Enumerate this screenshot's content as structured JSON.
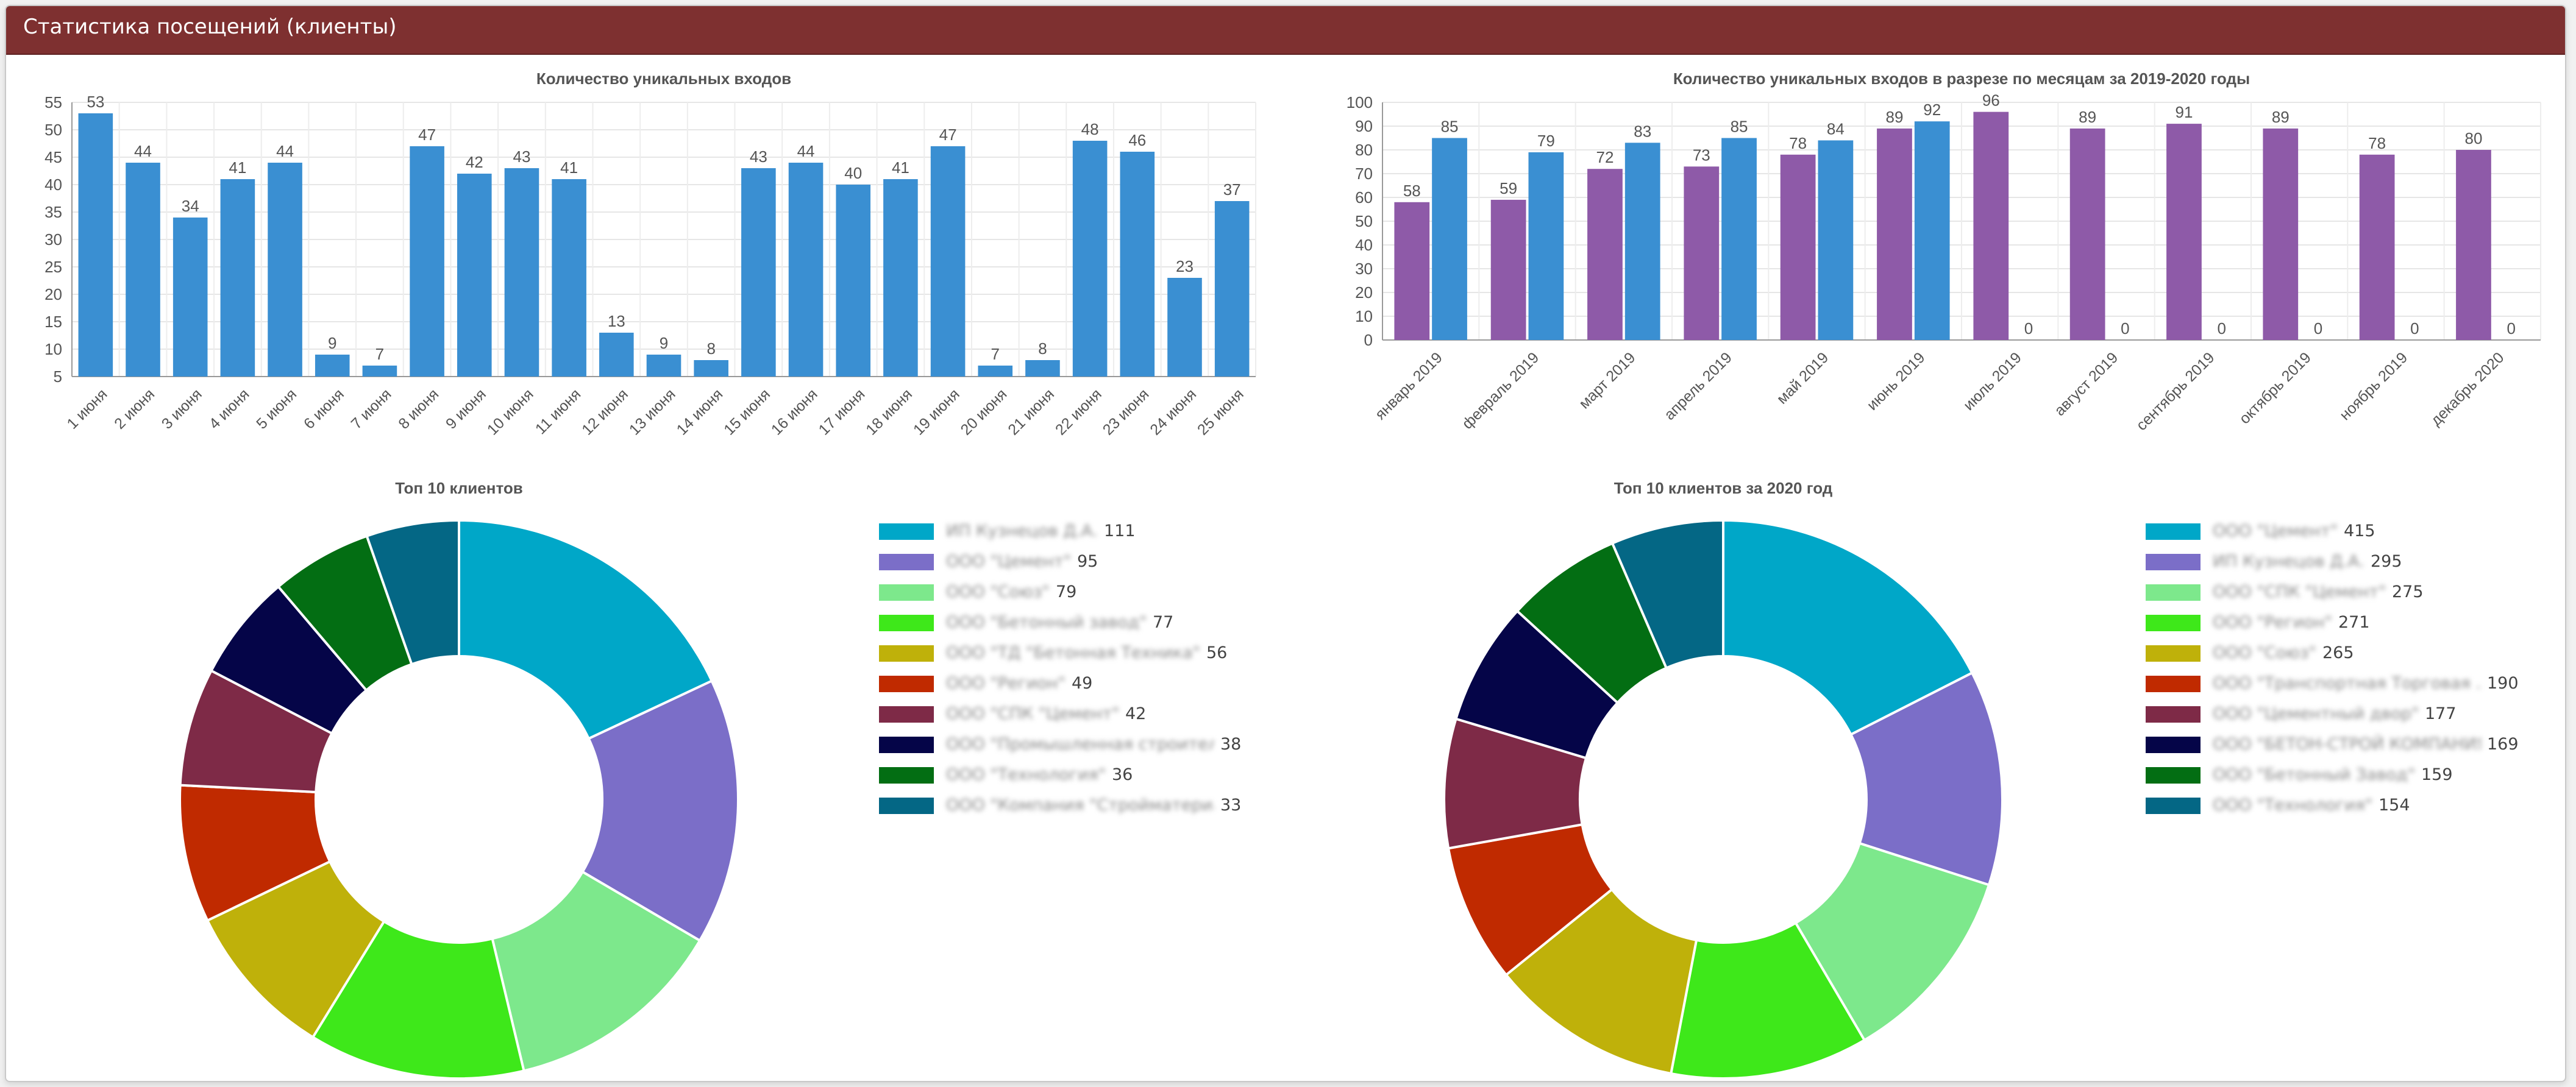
{
  "header": {
    "title": "Статистика посещений (клиенты)"
  },
  "colors": {
    "header_bg": "#7e3030",
    "bar_blue": "#3a8fd2",
    "bar_purple": "#8e5aa8",
    "pie": [
      "#00a7c8",
      "#7b6ec8",
      "#7de88c",
      "#3ee81a",
      "#bfb10a",
      "#c02a00",
      "#7e2a47",
      "#050548",
      "#036e13",
      "#046785"
    ]
  },
  "chart_data": [
    {
      "type": "bar",
      "title": "Количество уникальных входов",
      "categories": [
        "1 июня",
        "2 июня",
        "3 июня",
        "4 июня",
        "5 июня",
        "6 июня",
        "7 июня",
        "8 июня",
        "9 июня",
        "10 июня",
        "11 июня",
        "12 июня",
        "13 июня",
        "14 июня",
        "15 июня",
        "16 июня",
        "17 июня",
        "18 июня",
        "19 июня",
        "20 июня",
        "21 июня",
        "22 июня",
        "23 июня",
        "24 июня",
        "25 июня"
      ],
      "values": [
        53,
        44,
        34,
        41,
        44,
        9,
        7,
        47,
        42,
        43,
        41,
        13,
        9,
        8,
        43,
        44,
        40,
        41,
        47,
        7,
        8,
        48,
        46,
        23,
        37
      ],
      "ylim": [
        5,
        55
      ],
      "yticks": [
        5,
        10,
        15,
        20,
        25,
        30,
        35,
        40,
        45,
        50,
        55
      ],
      "grid": true,
      "data_labels": true
    },
    {
      "type": "bar",
      "title": "Количество уникальных входов в разрезе по месяцам за 2019-2020 годы",
      "categories": [
        "январь 2019",
        "февраль 2019",
        "март 2019",
        "апрель 2019",
        "май 2019",
        "июнь 2019",
        "июль 2019",
        "август 2019",
        "сентябрь 2019",
        "октябрь 2019",
        "ноябрь 2019",
        "декабрь 2020"
      ],
      "series": [
        {
          "values": [
            58,
            59,
            72,
            73,
            78,
            89,
            96,
            89,
            91,
            89,
            78,
            80
          ]
        },
        {
          "values": [
            85,
            79,
            83,
            85,
            84,
            92,
            0,
            0,
            0,
            0,
            0,
            0
          ]
        }
      ],
      "ylim": [
        0,
        100
      ],
      "yticks": [
        0,
        10,
        20,
        30,
        40,
        50,
        60,
        70,
        80,
        90,
        100
      ],
      "grid": true,
      "data_labels": true
    },
    {
      "type": "pie",
      "title": "Топ 10 клиентов",
      "donut": true,
      "legend_position": "right",
      "labels": [
        "ИП Кузнецов Д.А.",
        "ООО \"Цемент\"",
        "ООО \"Союз\"",
        "ООО \"Бетонный завод\"",
        "ООО \"ТД \"Бетонная Техника\"",
        "ООО \"Регион\"",
        "ООО \"СПК \"Цемент\"",
        "ООО \"Промышленная строитель...",
        "ООО \"Технология\"",
        "ООО \"Компания \"Стройматериалы\""
      ],
      "values": [
        111,
        95,
        79,
        77,
        56,
        49,
        42,
        38,
        36,
        33
      ]
    },
    {
      "type": "pie",
      "title": "Топ 10 клиентов за 2020 год",
      "donut": true,
      "legend_position": "right",
      "labels": [
        "ООО \"Цемент\"",
        "ИП Кузнецов Д.А.",
        "ООО \"СПК \"Цемент\"",
        "ООО \"Регион\"",
        "ООО \"Союз\"",
        "ООО \"Транспортная Торговая ...",
        "ООО \"Цементный двор\"",
        "ООО \"БЕТОН-СТРОЙ КОМПАНИЯ\"",
        "ООО \"Бетонный Завод\"",
        "ООО \"Технология\""
      ],
      "values": [
        415,
        295,
        275,
        271,
        265,
        190,
        177,
        169,
        159,
        154
      ]
    }
  ]
}
